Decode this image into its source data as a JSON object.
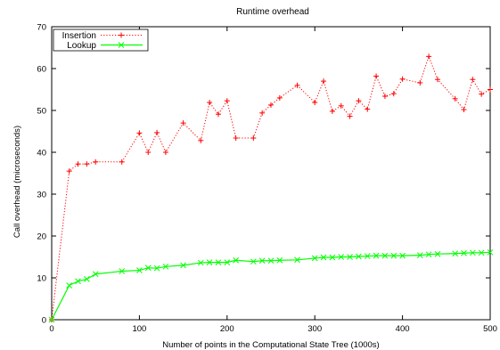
{
  "chart_data": {
    "type": "line",
    "title": "Runtime overhead",
    "xlabel": "Number of points in the Computational State Tree (1000s)",
    "ylabel": "Call overhead (microseconds)",
    "xlim": [
      0,
      500
    ],
    "ylim": [
      0,
      70
    ],
    "xticks": [
      0,
      100,
      200,
      300,
      400,
      500
    ],
    "yticks": [
      0,
      10,
      20,
      30,
      40,
      50,
      60,
      70
    ],
    "grid": false,
    "legend_position": "top-left",
    "series": [
      {
        "name": "Insertion",
        "color": "#ff0000",
        "line_style": "dotted",
        "marker": "plus",
        "points": [
          [
            0,
            0
          ],
          [
            20,
            35.5
          ],
          [
            30,
            37.2
          ],
          [
            40,
            37.2
          ],
          [
            50,
            37.7
          ],
          [
            80,
            37.7
          ],
          [
            100,
            44.6
          ],
          [
            110,
            40.0
          ],
          [
            120,
            44.7
          ],
          [
            130,
            40.0
          ],
          [
            150,
            47.0
          ],
          [
            170,
            42.8
          ],
          [
            180,
            51.9
          ],
          [
            190,
            49.1
          ],
          [
            200,
            52.3
          ],
          [
            210,
            43.4
          ],
          [
            230,
            43.4
          ],
          [
            240,
            49.4
          ],
          [
            250,
            51.3
          ],
          [
            260,
            53.0
          ],
          [
            280,
            56.0
          ],
          [
            300,
            51.9
          ],
          [
            310,
            57.0
          ],
          [
            320,
            49.8
          ],
          [
            330,
            51.1
          ],
          [
            340,
            48.6
          ],
          [
            350,
            52.3
          ],
          [
            360,
            50.3
          ],
          [
            370,
            58.2
          ],
          [
            380,
            53.4
          ],
          [
            390,
            54.0
          ],
          [
            400,
            57.5
          ],
          [
            420,
            56.6
          ],
          [
            430,
            62.9
          ],
          [
            440,
            57.4
          ],
          [
            460,
            52.8
          ],
          [
            470,
            50.2
          ],
          [
            480,
            57.4
          ],
          [
            490,
            53.9
          ],
          [
            500,
            55.0
          ]
        ]
      },
      {
        "name": "Lookup",
        "color": "#00ff00",
        "line_style": "solid",
        "marker": "x",
        "points": [
          [
            0,
            0
          ],
          [
            20,
            8.2
          ],
          [
            30,
            9.2
          ],
          [
            40,
            9.7
          ],
          [
            50,
            10.9
          ],
          [
            80,
            11.6
          ],
          [
            100,
            11.8
          ],
          [
            110,
            12.4
          ],
          [
            120,
            12.3
          ],
          [
            130,
            12.7
          ],
          [
            150,
            13.0
          ],
          [
            170,
            13.6
          ],
          [
            180,
            13.7
          ],
          [
            190,
            13.7
          ],
          [
            200,
            13.7
          ],
          [
            210,
            14.2
          ],
          [
            230,
            13.9
          ],
          [
            240,
            14.1
          ],
          [
            250,
            14.1
          ],
          [
            260,
            14.2
          ],
          [
            280,
            14.3
          ],
          [
            300,
            14.7
          ],
          [
            310,
            14.9
          ],
          [
            320,
            14.9
          ],
          [
            330,
            15.0
          ],
          [
            340,
            15.0
          ],
          [
            350,
            15.1
          ],
          [
            360,
            15.2
          ],
          [
            370,
            15.3
          ],
          [
            380,
            15.3
          ],
          [
            390,
            15.3
          ],
          [
            400,
            15.3
          ],
          [
            420,
            15.4
          ],
          [
            430,
            15.6
          ],
          [
            440,
            15.7
          ],
          [
            460,
            15.8
          ],
          [
            470,
            15.9
          ],
          [
            480,
            16.0
          ],
          [
            490,
            16.0
          ],
          [
            500,
            16.1
          ]
        ]
      }
    ]
  }
}
